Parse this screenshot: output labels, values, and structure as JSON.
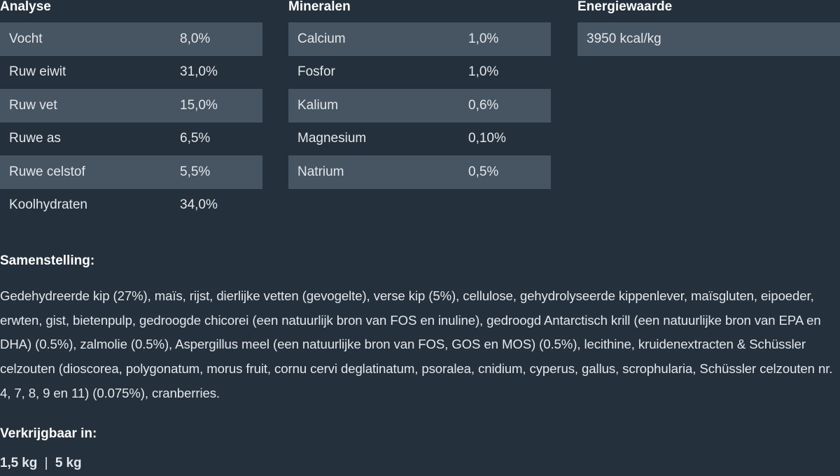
{
  "tables": [
    {
      "title": "Analyse",
      "rows": [
        [
          "Vocht",
          "8,0%"
        ],
        [
          "Ruw eiwit",
          "31,0%"
        ],
        [
          "Ruw vet",
          "15,0%"
        ],
        [
          "Ruwe as",
          "6,5%"
        ],
        [
          "Ruwe celstof",
          "5,5%"
        ],
        [
          "Koolhydraten",
          "34,0%"
        ]
      ]
    },
    {
      "title": "Mineralen",
      "rows": [
        [
          "Calcium",
          "1,0%"
        ],
        [
          "Fosfor",
          "1,0%"
        ],
        [
          "Kalium",
          "0,6%"
        ],
        [
          "Magnesium",
          "0,10%"
        ],
        [
          "Natrium",
          "0,5%"
        ]
      ]
    },
    {
      "title": "Energiewaarde",
      "rows": [
        [
          "3950 kcal/kg"
        ]
      ]
    }
  ],
  "composition": {
    "title": "Samenstelling:",
    "text": "Gedehydreerde kip (27%), maïs, rijst, dierlijke vetten (gevogelte), verse kip (5%), cellulose, gehydrolyseerde kippenlever, maïsgluten, eipoeder, erwten, gist, bietenpulp, gedroogde chicorei (een natuurlijk bron van FOS en inuline), gedroogd Antarctisch krill (een natuurlijke bron van EPA en DHA) (0.5%), zalmolie (0.5%), Aspergillus meel (een natuurlijke bron van FOS, GOS en MOS) (0.5%), lecithine, kruidenextracten & Schüssler celzouten (dioscorea, polygonatum, morus fruit, cornu cervi deglatinatum, psoralea, cnidium, cyperus, gallus, scrophularia, Schüssler celzouten nr. 4, 7, 8, 9 en 11) (0.075%), cranberries."
  },
  "availability": {
    "title": "Verkrijgbaar in:",
    "sizes": [
      "1,5 kg",
      "5 kg"
    ]
  }
}
